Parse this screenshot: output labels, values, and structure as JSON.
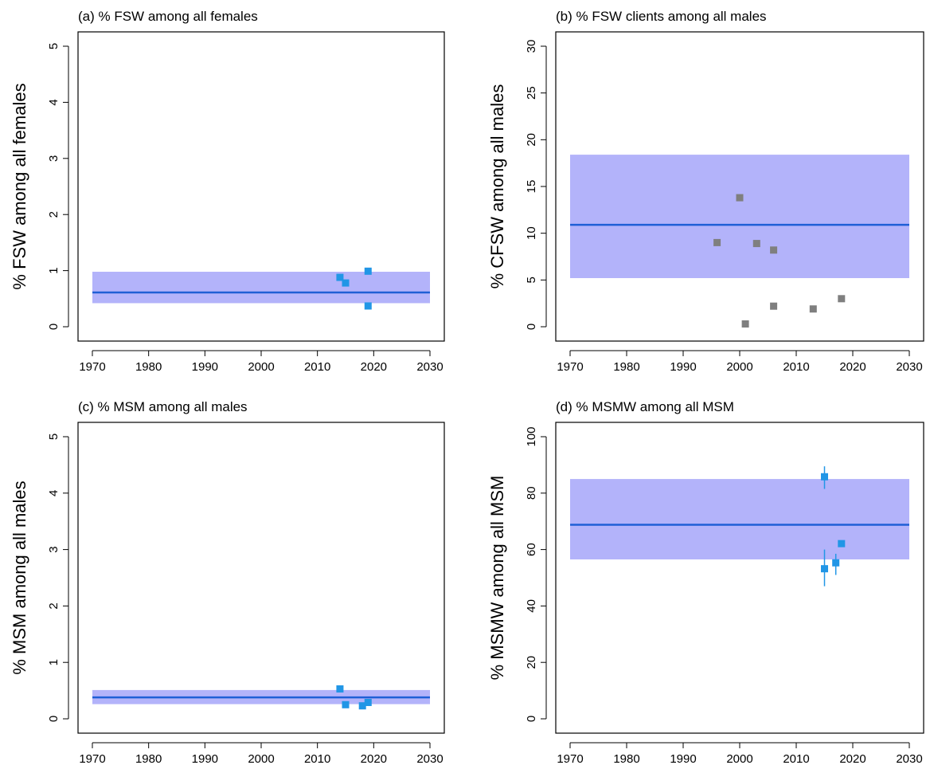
{
  "colors": {
    "band": "#b3b3fa",
    "median_line": "#1f5fd6",
    "point_blue": "#2196e6",
    "point_grey": "#7f7f7f",
    "axis": "#000000"
  },
  "chart_data": [
    {
      "type": "scatter",
      "title": "(a) % FSW among all females",
      "ylabel": "% FSW among all females",
      "xlabel": "",
      "xlim": [
        1970,
        2030
      ],
      "ylim": [
        0,
        5
      ],
      "xticks": [
        "1970",
        "1980",
        "1990",
        "2000",
        "2010",
        "2020",
        "2030"
      ],
      "yticks": [
        "0",
        "1",
        "2",
        "3",
        "4",
        "5"
      ],
      "band": {
        "x": [
          1970,
          2030
        ],
        "lower": 0.42,
        "upper": 0.98
      },
      "line": {
        "x": [
          1970,
          2030
        ],
        "y": 0.61
      },
      "series": [
        {
          "color": "point_blue",
          "points": [
            {
              "x": 2014,
              "y": 0.88
            },
            {
              "x": 2015,
              "y": 0.78
            },
            {
              "x": 2019,
              "y": 0.99
            },
            {
              "x": 2019,
              "y": 0.37
            }
          ]
        }
      ]
    },
    {
      "type": "scatter",
      "title": "(b) % FSW clients among all males",
      "ylabel": "% CFSW among all males",
      "xlabel": "",
      "xlim": [
        1970,
        2030
      ],
      "ylim": [
        0,
        30
      ],
      "xticks": [
        "1970",
        "1980",
        "1990",
        "2000",
        "2010",
        "2020",
        "2030"
      ],
      "yticks": [
        "0",
        "5",
        "10",
        "15",
        "20",
        "25",
        "30"
      ],
      "band": {
        "x": [
          1970,
          2030
        ],
        "lower": 5.2,
        "upper": 18.4
      },
      "line": {
        "x": [
          1970,
          2030
        ],
        "y": 10.9
      },
      "series": [
        {
          "color": "point_grey",
          "points": [
            {
              "x": 1996,
              "y": 9.0
            },
            {
              "x": 2000,
              "y": 13.8
            },
            {
              "x": 2001,
              "y": 0.3
            },
            {
              "x": 2003,
              "y": 8.9
            },
            {
              "x": 2006,
              "y": 8.2
            },
            {
              "x": 2006,
              "y": 2.2
            },
            {
              "x": 2013,
              "y": 1.9
            },
            {
              "x": 2018,
              "y": 3.0
            }
          ]
        }
      ]
    },
    {
      "type": "scatter",
      "title": "(c) % MSM among all males",
      "ylabel": "% MSM among all males",
      "xlabel": "",
      "xlim": [
        1970,
        2030
      ],
      "ylim": [
        0,
        5
      ],
      "xticks": [
        "1970",
        "1980",
        "1990",
        "2000",
        "2010",
        "2020",
        "2030"
      ],
      "yticks": [
        "0",
        "1",
        "2",
        "3",
        "4",
        "5"
      ],
      "band": {
        "x": [
          1970,
          2030
        ],
        "lower": 0.26,
        "upper": 0.51
      },
      "line": {
        "x": [
          1970,
          2030
        ],
        "y": 0.38
      },
      "series": [
        {
          "color": "point_blue",
          "points": [
            {
              "x": 2014,
              "y": 0.53
            },
            {
              "x": 2015,
              "y": 0.25
            },
            {
              "x": 2018,
              "y": 0.23
            },
            {
              "x": 2019,
              "y": 0.29
            }
          ]
        }
      ]
    },
    {
      "type": "scatter",
      "title": "(d) % MSMW among all MSM",
      "ylabel": "% MSMW among all MSM",
      "xlabel": "",
      "xlim": [
        1970,
        2030
      ],
      "ylim": [
        0,
        100
      ],
      "xticks": [
        "1970",
        "1980",
        "1990",
        "2000",
        "2010",
        "2020",
        "2030"
      ],
      "yticks": [
        "0",
        "20",
        "40",
        "60",
        "80",
        "100"
      ],
      "band": {
        "x": [
          1970,
          2030
        ],
        "lower": 56.5,
        "upper": 85.0
      },
      "line": {
        "x": [
          1970,
          2030
        ],
        "y": 68.8
      },
      "series": [
        {
          "color": "point_blue",
          "points": [
            {
              "x": 2015,
              "y": 85.8,
              "err_low": 81.5,
              "err_high": 89.5
            },
            {
              "x": 2015,
              "y": 53.2,
              "err_low": 47.0,
              "err_high": 60.0
            },
            {
              "x": 2017,
              "y": 55.3,
              "err_low": 51.0,
              "err_high": 58.5
            },
            {
              "x": 2018,
              "y": 62.1
            }
          ]
        }
      ]
    }
  ]
}
